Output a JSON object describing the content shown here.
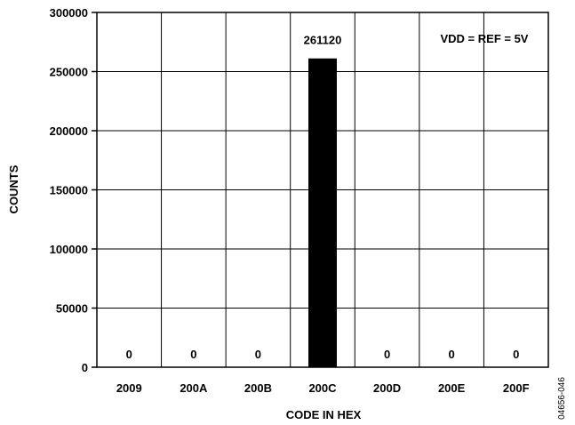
{
  "chart_data": {
    "type": "bar",
    "xlabel": "CODE IN HEX",
    "ylabel": "COUNTS",
    "categories": [
      "2009",
      "200A",
      "200B",
      "200C",
      "200D",
      "200E",
      "200F"
    ],
    "values": [
      0,
      0,
      0,
      261120,
      0,
      0,
      0
    ],
    "data_labels": [
      "0",
      "0",
      "0",
      "261120",
      "0",
      "0",
      "0"
    ],
    "ylim": [
      0,
      300000
    ],
    "yticks": [
      0,
      50000,
      100000,
      150000,
      200000,
      250000,
      300000
    ],
    "ytick_labels": [
      "0",
      "50000",
      "100000",
      "150000",
      "200000",
      "250000",
      "300000"
    ],
    "annotation": "VDD = REF = 5V",
    "grid": true,
    "bar_color": "#000000"
  },
  "figure_id": "04656-046"
}
